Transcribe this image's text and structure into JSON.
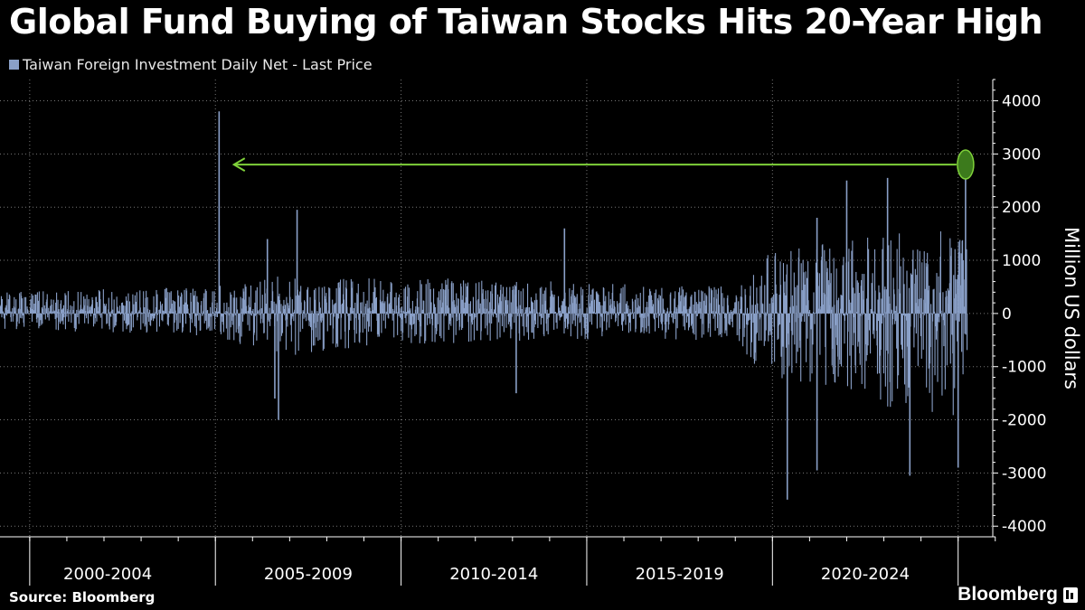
{
  "title": "Global Fund Buying of Taiwan Stocks Hits 20-Year High",
  "legend": {
    "label": "Taiwan Foreign Investment Daily Net - Last Price",
    "color": "#8aa0c8"
  },
  "source": "Source: Bloomberg",
  "brand": "Bloomberg",
  "colors": {
    "background": "#000000",
    "series": "#8aa0c8",
    "arrow": "#7fd13a",
    "highlight": "#3c7a1c",
    "grid": "#777777"
  },
  "chart_data": {
    "type": "bar",
    "title": "Global Fund Buying of Taiwan Stocks Hits 20-Year High",
    "ylabel": "Million US dollars",
    "xlabel": "",
    "ylim": [
      -4200,
      4400
    ],
    "yticks": [
      4000,
      3000,
      2000,
      1000,
      0,
      -1000,
      -2000,
      -3000,
      -4000
    ],
    "xlim": [
      2000.0,
      2026.1
    ],
    "categories": [
      "2000-2004",
      "2005-2009",
      "2010-2014",
      "2015-2019",
      "2020-2024"
    ],
    "category_boundaries": [
      2000,
      2005,
      2010,
      2015,
      2020,
      2025
    ],
    "grid": true,
    "series": [
      {
        "name": "Taiwan Foreign Investment Daily Net - Last Price",
        "notable_points": [
          {
            "x": 2005.9,
            "y": 3800
          },
          {
            "x": 2007.2,
            "y": 1400
          },
          {
            "x": 2007.4,
            "y": -1600
          },
          {
            "x": 2007.5,
            "y": -2000
          },
          {
            "x": 2008.0,
            "y": 1950
          },
          {
            "x": 2015.2,
            "y": 1600
          },
          {
            "x": 2013.9,
            "y": -1500
          },
          {
            "x": 2021.2,
            "y": -3500
          },
          {
            "x": 2022.0,
            "y": 1800
          },
          {
            "x": 2022.0,
            "y": -2950
          },
          {
            "x": 2022.8,
            "y": 2500
          },
          {
            "x": 2023.9,
            "y": 2550
          },
          {
            "x": 2024.5,
            "y": -3050
          },
          {
            "x": 2025.8,
            "y": -2900
          },
          {
            "x": 2026.0,
            "y": 2700
          }
        ],
        "envelope": [
          {
            "x": 2000,
            "upper": 400,
            "lower": -300
          },
          {
            "x": 2005,
            "upper": 500,
            "lower": -400
          },
          {
            "x": 2008,
            "upper": 750,
            "lower": -800
          },
          {
            "x": 2010,
            "upper": 700,
            "lower": -600
          },
          {
            "x": 2015,
            "upper": 600,
            "lower": -500
          },
          {
            "x": 2019.8,
            "upper": 500,
            "lower": -500
          },
          {
            "x": 2020.5,
            "upper": 1100,
            "lower": -1200
          },
          {
            "x": 2022,
            "upper": 1300,
            "lower": -1400
          },
          {
            "x": 2024,
            "upper": 1500,
            "lower": -1800
          },
          {
            "x": 2026,
            "upper": 1600,
            "lower": -2000
          }
        ]
      }
    ],
    "annotations": [
      {
        "type": "arrow",
        "from_x": 2026.0,
        "to_x": 2006.3,
        "y": 2800
      },
      {
        "type": "highlight",
        "x": 2026.0,
        "y": 2700
      }
    ]
  }
}
